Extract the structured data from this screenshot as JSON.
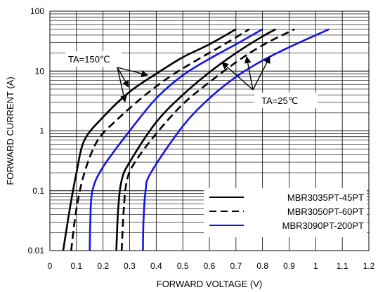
{
  "chart_data": {
    "type": "line",
    "xlabel": "FORWARD VOLTAGE (V)",
    "ylabel": "FORWARD CURRENT (A)",
    "xlim": [
      0,
      1.2
    ],
    "ylim": [
      0.01,
      100
    ],
    "yscale": "log",
    "x_ticks": [
      "0",
      "0.1",
      "0.2",
      "0.3",
      "0.4",
      "0.5",
      "0.6",
      "0.7",
      "0.8",
      "0.9",
      "1",
      "1.1",
      "1.2"
    ],
    "y_ticks": [
      "0.01",
      "0.1",
      "1",
      "10",
      "100"
    ],
    "grid": true,
    "legend_position": "bottom-right",
    "annotations": [
      "TA=150℃",
      "TA=25℃"
    ],
    "series": [
      {
        "name": "MBR3035PT-45PT",
        "style": "solid",
        "color": "#000000",
        "condition": "TA=150℃",
        "x": [
          0.05,
          0.075,
          0.1,
          0.13,
          0.2,
          0.3,
          0.4,
          0.5,
          0.6,
          0.7
        ],
        "y": [
          0.01,
          0.05,
          0.2,
          0.7,
          1.7,
          4.5,
          9.0,
          17.0,
          28.0,
          50.0
        ]
      },
      {
        "name": "MBR3050PT-60PT",
        "style": "dashed",
        "color": "#000000",
        "condition": "TA=150℃",
        "x": [
          0.08,
          0.1,
          0.13,
          0.18,
          0.25,
          0.35,
          0.45,
          0.55,
          0.65,
          0.75
        ],
        "y": [
          0.01,
          0.05,
          0.2,
          0.7,
          1.5,
          3.7,
          8.0,
          15.0,
          27.0,
          50.0
        ]
      },
      {
        "name": "MBR3090PT-200PT",
        "style": "solid",
        "color": "#1515e6",
        "condition": "TA=150℃",
        "x": [
          0.15,
          0.152,
          0.16,
          0.2,
          0.3,
          0.4,
          0.5,
          0.6,
          0.7,
          0.8
        ],
        "y": [
          0.01,
          0.03,
          0.1,
          0.25,
          1.0,
          3.5,
          8.5,
          16.0,
          28.0,
          50.0
        ]
      },
      {
        "name": "MBR3035PT-45PT",
        "style": "solid",
        "color": "#000000",
        "condition": "TA=25℃",
        "x": [
          0.25,
          0.257,
          0.27,
          0.3,
          0.4,
          0.5,
          0.6,
          0.7,
          0.8,
          0.85
        ],
        "y": [
          0.01,
          0.05,
          0.15,
          0.3,
          1.4,
          4.0,
          9.5,
          20.0,
          38.0,
          50.0
        ]
      },
      {
        "name": "MBR3050PT-60PT",
        "style": "dashed",
        "color": "#000000",
        "condition": "TA=25℃",
        "x": [
          0.27,
          0.278,
          0.29,
          0.32,
          0.4,
          0.5,
          0.6,
          0.7,
          0.8,
          0.92
        ],
        "y": [
          0.01,
          0.05,
          0.15,
          0.3,
          0.9,
          2.8,
          6.5,
          14.0,
          27.0,
          50.0
        ]
      },
      {
        "name": "MBR3090PT-200PT",
        "style": "solid",
        "color": "#1515e6",
        "condition": "TA=25℃",
        "x": [
          0.35,
          0.352,
          0.36,
          0.38,
          0.5,
          0.6,
          0.7,
          0.8,
          0.9,
          1.05
        ],
        "y": [
          0.01,
          0.03,
          0.1,
          0.2,
          1.2,
          3.5,
          8.0,
          15.0,
          25.0,
          50.0
        ]
      }
    ],
    "legend": [
      {
        "label": "MBR3035PT-45PT",
        "style": "solid",
        "color": "#000000"
      },
      {
        "label": "MBR3050PT-60PT",
        "style": "dashed",
        "color": "#000000"
      },
      {
        "label": "MBR3090PT-200PT",
        "style": "solid",
        "color": "#1515e6"
      }
    ]
  }
}
